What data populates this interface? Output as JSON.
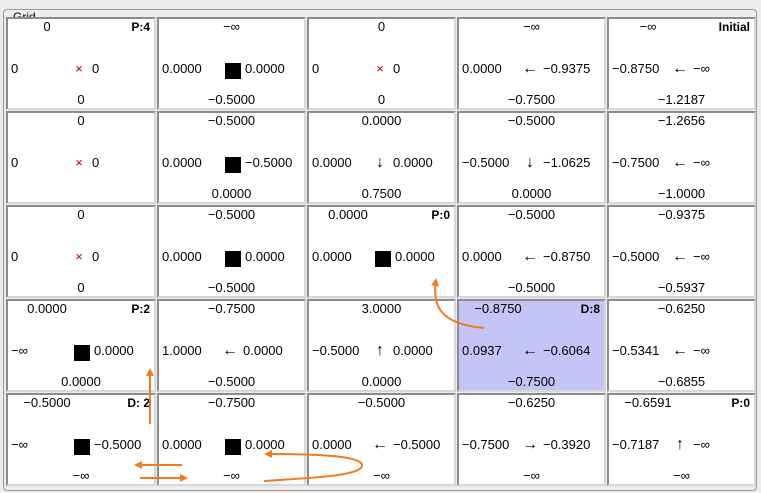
{
  "group_title": "Grid",
  "colors": {
    "highlight": "#c4c4f7",
    "arrow": "#f07a1e",
    "x_mark": "#c00000"
  },
  "grid": {
    "rows": [
      [
        {
          "top": "0",
          "left": "0",
          "right": "0",
          "bottom": "0",
          "center": "x",
          "corner": "P:4"
        },
        {
          "top": "−∞",
          "left": "0.0000",
          "right": "0.0000",
          "bottom": "−0.5000",
          "center": "block",
          "corner": ""
        },
        {
          "top": "0",
          "left": "0",
          "right": "0",
          "bottom": "0",
          "center": "x",
          "corner": ""
        },
        {
          "top": "−∞",
          "left": "0.0000",
          "right": "−0.9375",
          "bottom": "−0.7500",
          "center": "left-arrow",
          "corner": ""
        },
        {
          "top": "−∞",
          "left": "−0.8750",
          "right": "−∞",
          "bottom": "−1.2187",
          "center": "left-arrow",
          "corner": "Initial"
        }
      ],
      [
        {
          "top": "0",
          "left": "0",
          "right": "0",
          "bottom": "",
          "center": "x",
          "corner": ""
        },
        {
          "top": "−0.5000",
          "left": "0.0000",
          "right": "−0.5000",
          "bottom": "0.0000",
          "center": "block",
          "corner": ""
        },
        {
          "top": "0.0000",
          "left": "0.0000",
          "right": "0.0000",
          "bottom": "0.7500",
          "center": "down-arrow",
          "corner": ""
        },
        {
          "top": "−0.5000",
          "left": "−0.5000",
          "right": "−1.0625",
          "bottom": "0.0000",
          "center": "down-arrow",
          "corner": ""
        },
        {
          "top": "−1.2656",
          "left": "−0.7500",
          "right": "−∞",
          "bottom": "−1.0000",
          "center": "left-arrow",
          "corner": ""
        }
      ],
      [
        {
          "top": "0",
          "left": "0",
          "right": "0",
          "bottom": "0",
          "center": "x",
          "corner": ""
        },
        {
          "top": "−0.5000",
          "left": "0.0000",
          "right": "0.0000",
          "bottom": "−0.5000",
          "center": "block",
          "corner": ""
        },
        {
          "top": "0.0000",
          "left": "0.0000",
          "right": "0.0000",
          "bottom": "",
          "center": "block",
          "corner": "P:0"
        },
        {
          "top": "−0.5000",
          "left": "0.0000",
          "right": "−0.8750",
          "bottom": "−0.5000",
          "center": "left-arrow",
          "corner": ""
        },
        {
          "top": "−0.9375",
          "left": "−0.5000",
          "right": "−∞",
          "bottom": "−0.5937",
          "center": "left-arrow",
          "corner": ""
        }
      ],
      [
        {
          "top": "0.0000",
          "left": "−∞",
          "right": "0.0000",
          "bottom": "0.0000",
          "center": "block",
          "corner": "P:2"
        },
        {
          "top": "−0.7500",
          "left": "1.0000",
          "right": "0.0000",
          "bottom": "−0.5000",
          "center": "left-arrow",
          "corner": ""
        },
        {
          "top": "3.0000",
          "left": "−0.5000",
          "right": "0.0000",
          "bottom": "0.0000",
          "center": "up-arrow",
          "corner": ""
        },
        {
          "top": "−0.8750",
          "left": "0.0937",
          "right": "−0.6064",
          "bottom": "−0.7500",
          "center": "left-arrow",
          "corner": "D:8",
          "highlight": true
        },
        {
          "top": "−0.6250",
          "left": "−0.5341",
          "right": "−∞",
          "bottom": "−0.6855",
          "center": "left-arrow",
          "corner": ""
        }
      ],
      [
        {
          "top": "−0.5000",
          "left": "−∞",
          "right": "−0.5000",
          "bottom": "−∞",
          "center": "block",
          "corner": "D: 2"
        },
        {
          "top": "−0.7500",
          "left": "0.0000",
          "right": "0.0000",
          "bottom": "−∞",
          "center": "block",
          "corner": ""
        },
        {
          "top": "−0.5000",
          "left": "0.0000",
          "right": "−0.5000",
          "bottom": "−∞",
          "center": "left-arrow",
          "corner": ""
        },
        {
          "top": "−0.6250",
          "left": "−0.7500",
          "right": "−0.3920",
          "bottom": "−∞",
          "center": "right-arrow",
          "corner": ""
        },
        {
          "top": "−0.6591",
          "left": "−0.7187",
          "right": "−∞",
          "bottom": "−∞",
          "center": "up-arrow",
          "corner": "P:0"
        }
      ]
    ]
  }
}
